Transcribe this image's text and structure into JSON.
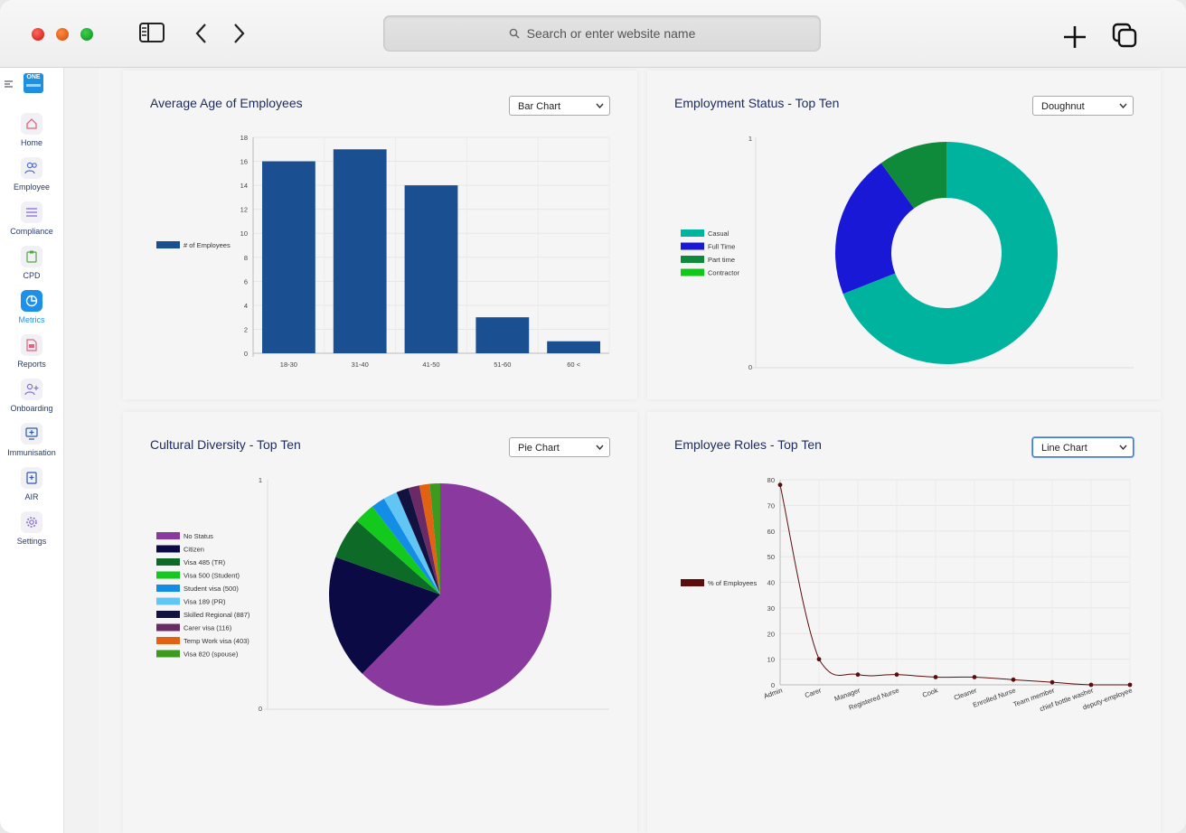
{
  "browser": {
    "url_placeholder": "Search or enter website name"
  },
  "sidebar": {
    "logo_text": "ONE",
    "items": [
      {
        "label": "Home",
        "icon": "home-icon"
      },
      {
        "label": "Employee",
        "icon": "users-icon"
      },
      {
        "label": "Compliance",
        "icon": "list-icon"
      },
      {
        "label": "CPD",
        "icon": "clipboard-icon"
      },
      {
        "label": "Metrics",
        "icon": "pie-chart-icon",
        "active": true
      },
      {
        "label": "Reports",
        "icon": "pdf-icon"
      },
      {
        "label": "Onboarding",
        "icon": "add-user-icon"
      },
      {
        "label": "Immunisation",
        "icon": "monitor-plus-icon"
      },
      {
        "label": "AIR",
        "icon": "document-plus-icon"
      },
      {
        "label": "Settings",
        "icon": "gear-icon"
      }
    ]
  },
  "cards": {
    "age": {
      "title": "Average Age of Employees",
      "select": "Bar Chart"
    },
    "status": {
      "title": "Employment Status - Top Ten",
      "select": "Doughnut"
    },
    "culture": {
      "title": "Cultural Diversity - Top Ten",
      "select": "Pie Chart"
    },
    "roles": {
      "title": "Employee Roles - Top Ten",
      "select": "Line Chart"
    }
  },
  "chart_data": [
    {
      "type": "bar",
      "categories": [
        "18-30",
        "31-40",
        "41-50",
        "51-60",
        "60 <"
      ],
      "series": [
        {
          "name": "# of Employees",
          "values": [
            16,
            17,
            14,
            3,
            1
          ],
          "color": "#1a4f91"
        }
      ],
      "ylim": [
        0,
        18
      ],
      "yticks": [
        0,
        2,
        4,
        6,
        8,
        10,
        12,
        14,
        16,
        18
      ],
      "legend": "left",
      "grid": true
    },
    {
      "type": "doughnut",
      "labels": [
        "Casual",
        "Full Time",
        "Part time",
        "Contractor"
      ],
      "values": [
        69,
        21,
        10,
        0
      ],
      "colors": [
        "#00b39f",
        "#1818d6",
        "#0e8a3a",
        "#13c61a"
      ],
      "yticks": [
        0,
        1
      ],
      "legend": "left"
    },
    {
      "type": "pie",
      "labels": [
        "No Status",
        "Citizen",
        "Visa 485 (TR)",
        "Visa 500 (Student)",
        "Student visa (500)",
        "Visa 189 (PR)",
        "Skilled Regional (887)",
        "Carer visa (116)",
        "Temp Work visa (403)",
        "Visa 820 (spouse)"
      ],
      "values": [
        62,
        18,
        6,
        3,
        2,
        2,
        1.8,
        1.6,
        1.5,
        1.5
      ],
      "colors": [
        "#8a3a9e",
        "#0c0a45",
        "#0d6a27",
        "#14c91e",
        "#148de6",
        "#62c6f5",
        "#121240",
        "#6a2a66",
        "#e26212",
        "#3e9a1f"
      ],
      "yticks": [
        0,
        1
      ],
      "legend": "left"
    },
    {
      "type": "line",
      "categories": [
        "Admin",
        "Carer",
        "Manager",
        "Registered Nurse",
        "Cook",
        "Cleaner",
        "Enrolled Nurse",
        "Team member",
        "chief bottle washer",
        "deputy-employee"
      ],
      "series": [
        {
          "name": "% of Employees",
          "values": [
            78,
            10,
            4,
            4,
            3,
            3,
            2,
            1,
            0,
            0
          ],
          "color": "#5c0d0d"
        }
      ],
      "ylim": [
        0,
        80
      ],
      "yticks": [
        0,
        10,
        20,
        30,
        40,
        50,
        60,
        70,
        80
      ],
      "legend": "left",
      "grid": true
    }
  ]
}
